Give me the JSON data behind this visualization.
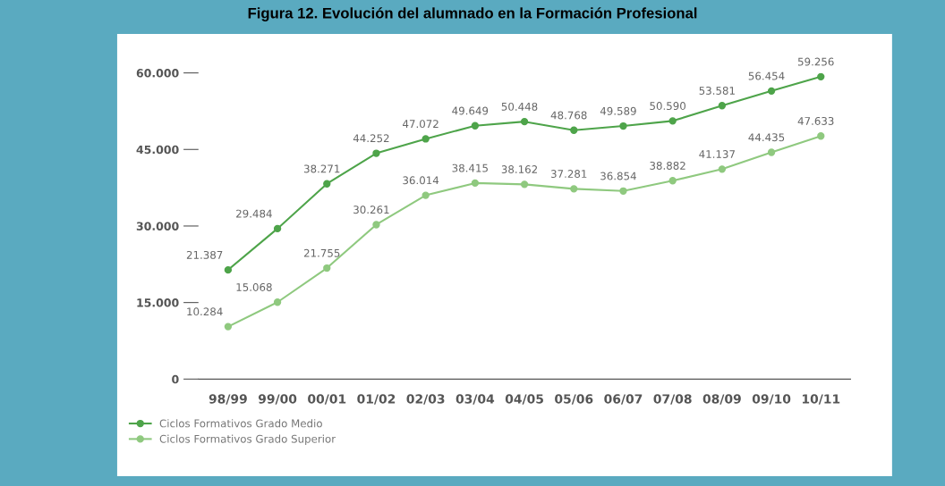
{
  "chart_data": {
    "type": "line",
    "title": "Figura 12. Evolución del alumnado en la Formación Profesional",
    "categories": [
      "98/99",
      "99/00",
      "00/01",
      "01/02",
      "02/03",
      "03/04",
      "04/05",
      "05/06",
      "06/07",
      "07/08",
      "08/09",
      "09/10",
      "10/11"
    ],
    "series": [
      {
        "name": "Ciclos Formativos Grado Medio",
        "color": "#4ea44a",
        "values": [
          21387,
          29484,
          38271,
          44252,
          47072,
          49649,
          50448,
          48768,
          49589,
          50590,
          53581,
          56454,
          59256
        ],
        "value_labels": [
          "21.387",
          "29.484",
          "38.271",
          "44.252",
          "47.072",
          "49.649",
          "50.448",
          "48.768",
          "49.589",
          "50.590",
          "53.581",
          "56.454",
          "59.256"
        ]
      },
      {
        "name": "Ciclos Formativos Grado Superior",
        "color": "#8fc97f",
        "values": [
          10284,
          15068,
          21755,
          30261,
          36014,
          38415,
          38162,
          37281,
          36854,
          38882,
          41137,
          44435,
          47633
        ],
        "value_labels": [
          "10.284",
          "15.068",
          "21.755",
          "30.261",
          "36.014",
          "38.415",
          "38.162",
          "37.281",
          "36.854",
          "38.882",
          "41.137",
          "44.435",
          "47.633"
        ]
      }
    ],
    "ylim": [
      0,
      60000
    ],
    "yticks": [
      {
        "value": 0,
        "label": "0"
      },
      {
        "value": 15000,
        "label": "15.000"
      },
      {
        "value": 30000,
        "label": "30.000"
      },
      {
        "value": 45000,
        "label": "45.000"
      },
      {
        "value": 60000,
        "label": "60.000"
      }
    ],
    "marker": "circle",
    "line_style": "solid",
    "grid": false,
    "legend": "bottom left"
  }
}
